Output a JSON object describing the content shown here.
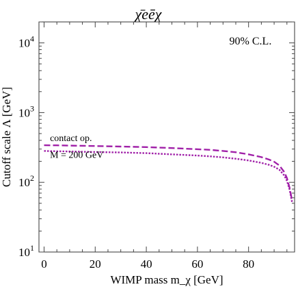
{
  "chart_data": {
    "type": "line",
    "title": "χ̄eēχ",
    "xlabel": "WIMP mass m_χ [GeV]",
    "ylabel": "Cutoff scale Λ [GeV]",
    "xlim": [
      -2,
      98
    ],
    "ylim": [
      10,
      20000
    ],
    "y_scale": "log",
    "grid": false,
    "x_ticks": [
      {
        "value": 0,
        "label": "0"
      },
      {
        "value": 20,
        "label": "20"
      },
      {
        "value": 40,
        "label": "40"
      },
      {
        "value": 60,
        "label": "60"
      },
      {
        "value": 80,
        "label": "80"
      }
    ],
    "y_ticks": [
      {
        "value": 10,
        "base": "10",
        "exp": "1"
      },
      {
        "value": 100,
        "base": "10",
        "exp": "2"
      },
      {
        "value": 1000,
        "base": "10",
        "exp": "3"
      },
      {
        "value": 10000,
        "base": "10",
        "exp": "4"
      }
    ],
    "annotations": [
      {
        "name": "confidence-level",
        "text": "90% C.L.",
        "x": 89,
        "y": 9500,
        "anchor": "end"
      },
      {
        "name": "contact-op-label",
        "text": "contact op.",
        "x": 2.3,
        "y": 390,
        "anchor": "start"
      },
      {
        "name": "mediator-mass-label",
        "text": "M = 200 GeV",
        "x": 2.3,
        "y": 225,
        "anchor": "start"
      }
    ],
    "series": [
      {
        "name": "contact op.",
        "color": "#a020a8",
        "style": "dashed",
        "x": [
          0,
          5,
          10,
          20,
          30,
          40,
          50,
          60,
          65,
          70,
          75,
          80,
          85,
          88,
          90,
          92,
          94,
          95,
          96,
          97
        ],
        "y": [
          340,
          339,
          336,
          332,
          326,
          320,
          310,
          298,
          292,
          282,
          270,
          252,
          230,
          212,
          197,
          175,
          140,
          115,
          85,
          55
        ]
      },
      {
        "name": "M = 200 GeV",
        "color": "#a020a8",
        "style": "dotted",
        "x": [
          0,
          5,
          10,
          20,
          30,
          40,
          50,
          60,
          65,
          70,
          75,
          80,
          85,
          88,
          90,
          92,
          94,
          95,
          96,
          97
        ],
        "y": [
          282,
          279,
          277,
          272,
          268,
          262,
          252,
          242,
          236,
          228,
          218,
          206,
          190,
          178,
          167,
          152,
          125,
          105,
          80,
          52
        ]
      }
    ]
  }
}
